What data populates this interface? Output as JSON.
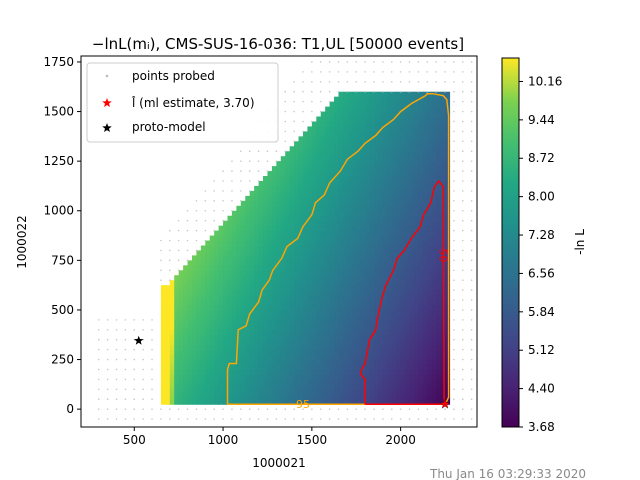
{
  "timestamp": "Thu Jan 16 03:29:33 2020",
  "chart_data": {
    "type": "heatmap",
    "title": "−lnL(mᵢ), CMS-SUS-16-036: T1,UL [50000 events]",
    "xlabel": "1000021",
    "ylabel": "1000022",
    "xlim": [
      200,
      2430
    ],
    "ylim": [
      -90,
      1780
    ],
    "xticks": [
      "500",
      "1000",
      "1500",
      "2000"
    ],
    "yticks": [
      "0",
      "250",
      "500",
      "750",
      "1000",
      "1250",
      "1500",
      "1750"
    ],
    "colorbar": {
      "label": "-ln L",
      "ticks": [
        "3.68",
        "4.40",
        "5.12",
        "5.84",
        "6.56",
        "7.28",
        "8.00",
        "8.72",
        "9.44",
        "10.16"
      ],
      "range": [
        3.68,
        10.6
      ]
    },
    "legend": {
      "position": "top-left",
      "entries": [
        {
          "label": "points probed",
          "marker": "dot",
          "color": "#bbbbbb"
        },
        {
          "label": "l̂ (ml estimate, 3.70)",
          "marker": "star",
          "color": "#ff0000"
        },
        {
          "label": "proto-model",
          "marker": "star",
          "color": "#000000"
        }
      ]
    },
    "region": {
      "description_points": [
        [
          650,
          25
        ],
        [
          650,
          600
        ],
        [
          1650,
          1580
        ],
        [
          2270,
          1580
        ],
        [
          2270,
          25
        ]
      ]
    },
    "contours": [
      {
        "name": "95",
        "color": "#ffa500",
        "x": [
          1025,
          1025,
          1035,
          1075,
          1085,
          1130,
          1150,
          1200,
          1220,
          1260,
          1280,
          1330,
          1360,
          1420,
          1450,
          1500,
          1520,
          1570,
          1600,
          1660,
          1700,
          1760,
          1800,
          1860,
          1900,
          1960,
          2000,
          2060,
          2100,
          2140,
          2150,
          2180,
          2240,
          2260,
          2270,
          2270,
          2260,
          2240,
          1025
        ],
        "y": [
          25,
          200,
          230,
          230,
          400,
          420,
          480,
          540,
          600,
          650,
          700,
          760,
          820,
          860,
          920,
          980,
          1040,
          1080,
          1140,
          1200,
          1260,
          1300,
          1340,
          1380,
          1420,
          1460,
          1500,
          1540,
          1560,
          1580,
          1590,
          1590,
          1580,
          1560,
          1480,
          60,
          40,
          25,
          25
        ]
      },
      {
        "name": "50",
        "color": "#ff0000",
        "x": [
          1800,
          1800,
          1775,
          1780,
          1800,
          1825,
          1860,
          1870,
          1895,
          1915,
          1960,
          1980,
          2020,
          2060,
          2110,
          2130,
          2170,
          2190,
          2215,
          2240,
          2245,
          2250,
          1800
        ],
        "y": [
          25,
          150,
          175,
          200,
          230,
          350,
          400,
          460,
          560,
          620,
          700,
          760,
          800,
          860,
          920,
          980,
          1040,
          1120,
          1150,
          1120,
          60,
          25,
          25
        ]
      }
    ],
    "contour_labels": [
      {
        "text": "95",
        "x": 1450,
        "y": 25,
        "color": "#ffa500"
      },
      {
        "text": "50",
        "x": 2240,
        "y": 775,
        "color": "#ff0000"
      }
    ],
    "ml_estimate": {
      "x": 2250,
      "y": 25
    },
    "proto_model": {
      "x": 525,
      "y": 345
    }
  }
}
